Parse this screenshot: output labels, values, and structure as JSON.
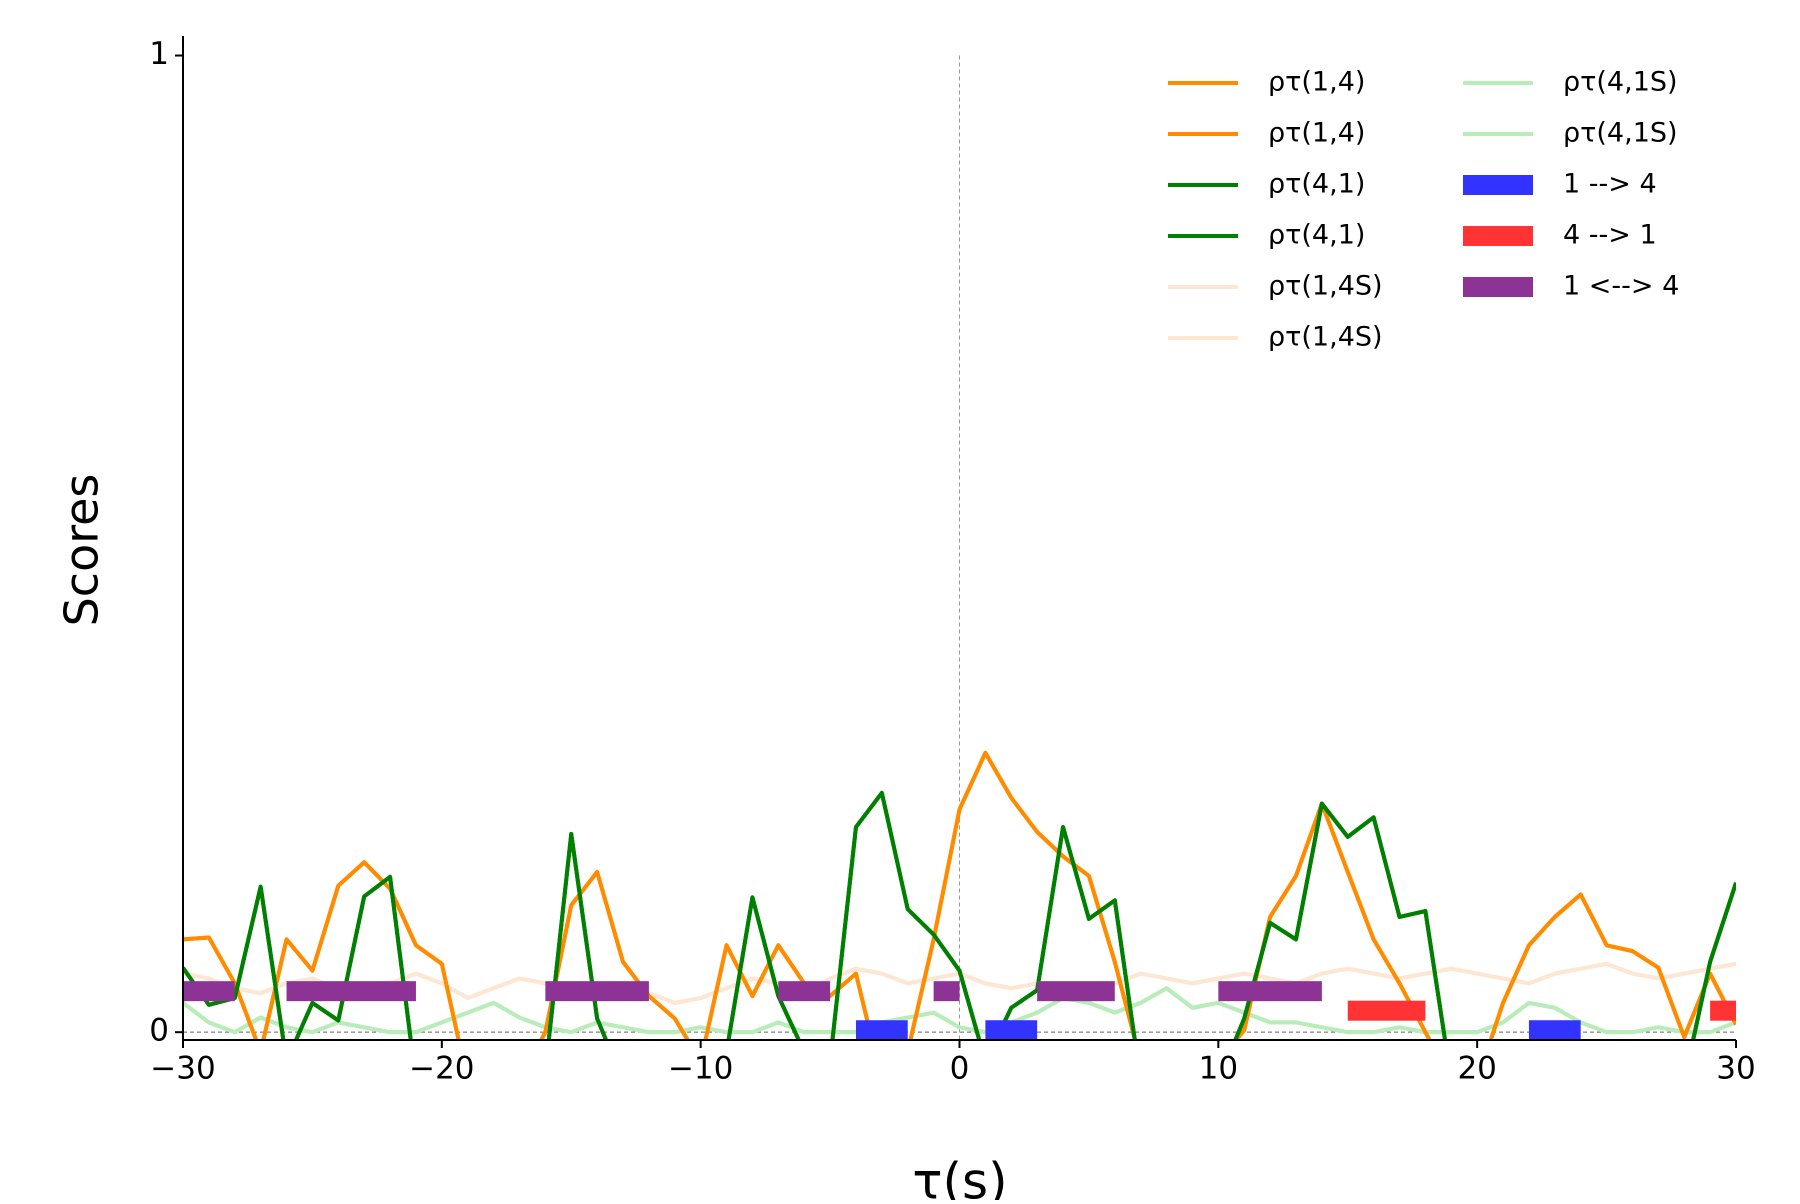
{
  "chart_data": {
    "type": "line",
    "xlabel": "τ(s)",
    "ylabel": "Scores",
    "xlim": [
      -30,
      30
    ],
    "ylim": [
      -0.008,
      1.02
    ],
    "xticks": [
      {
        "value": -30,
        "label": "−30"
      },
      {
        "value": -20,
        "label": "−20"
      },
      {
        "value": -10,
        "label": "−10"
      },
      0,
      10,
      20,
      30
    ],
    "yticks": [
      0,
      1
    ],
    "x": [
      -30,
      -29,
      -28,
      -27,
      -26,
      -25,
      -24,
      -23,
      -22,
      -21,
      -20,
      -19,
      -18,
      -17,
      -16,
      -15,
      -14,
      -13,
      -12,
      -11,
      -10,
      -9,
      -8,
      -7,
      -6,
      -5,
      -4,
      -3,
      -2,
      -1,
      0,
      1,
      2,
      3,
      4,
      5,
      6,
      7,
      8,
      9,
      10,
      11,
      12,
      13,
      14,
      15,
      16,
      17,
      18,
      19,
      20,
      21,
      22,
      23,
      24,
      25,
      26,
      27,
      28,
      29,
      30
    ],
    "series": [
      {
        "name": "ρτ(1,4)",
        "color": "#ff8c00",
        "width": 4,
        "values": [
          0.095,
          0.097,
          0.05,
          -0.02,
          0.095,
          0.063,
          0.15,
          0.174,
          0.147,
          0.089,
          0.07,
          -0.05,
          -0.05,
          -0.05,
          0.0,
          0.13,
          0.164,
          0.072,
          0.037,
          0.014,
          -0.03,
          0.089,
          0.037,
          0.089,
          0.05,
          0.037,
          0.06,
          -0.05,
          -0.02,
          0.095,
          0.228,
          0.286,
          0.24,
          0.205,
          0.18,
          0.16,
          0.072,
          -0.03,
          -0.05,
          -0.05,
          -0.03,
          0.002,
          0.118,
          0.16,
          0.234,
          0.164,
          0.095,
          0.05,
          0.0,
          -0.05,
          -0.05,
          0.03,
          0.089,
          0.118,
          0.141,
          0.089,
          0.083,
          0.066,
          -0.005,
          0.06,
          0.008
        ]
      },
      {
        "name": "ρτ(1,4)",
        "color": "#ff8c00",
        "width": 4,
        "values": [
          0.095,
          0.097,
          0.05,
          -0.02,
          0.095,
          0.063,
          0.15,
          0.174,
          0.147,
          0.089,
          0.07,
          -0.05,
          -0.05,
          -0.05,
          0.0,
          0.13,
          0.164,
          0.072,
          0.037,
          0.014,
          -0.03,
          0.089,
          0.037,
          0.089,
          0.05,
          0.037,
          0.06,
          -0.05,
          -0.02,
          0.095,
          0.228,
          0.286,
          0.24,
          0.205,
          0.18,
          0.16,
          0.072,
          -0.03,
          -0.05,
          -0.05,
          -0.03,
          0.002,
          0.118,
          0.16,
          0.234,
          0.164,
          0.095,
          0.05,
          0.0,
          -0.05,
          -0.05,
          0.03,
          0.089,
          0.118,
          0.141,
          0.089,
          0.083,
          0.066,
          -0.005,
          0.06,
          0.008
        ]
      },
      {
        "name": "ρτ(4,1)",
        "color": "#008000",
        "width": 4,
        "values": [
          0.066,
          0.028,
          0.035,
          0.149,
          -0.03,
          0.03,
          0.012,
          0.139,
          0.159,
          -0.05,
          -0.05,
          -0.05,
          -0.05,
          -0.05,
          -0.04,
          0.203,
          0.014,
          -0.05,
          -0.05,
          -0.05,
          -0.05,
          -0.02,
          0.138,
          0.037,
          -0.02,
          -0.03,
          0.21,
          0.245,
          0.126,
          0.1,
          0.063,
          -0.03,
          0.025,
          0.043,
          0.21,
          0.116,
          0.135,
          -0.05,
          -0.05,
          -0.05,
          -0.05,
          0.014,
          0.112,
          0.095,
          0.234,
          0.2,
          0.22,
          0.118,
          0.124,
          -0.05,
          -0.05,
          -0.05,
          -0.05,
          -0.05,
          -0.05,
          -0.05,
          -0.05,
          -0.05,
          -0.05,
          0.072,
          0.153
        ]
      },
      {
        "name": "ρτ(4,1)",
        "color": "#008000",
        "width": 4,
        "values": [
          0.066,
          0.028,
          0.035,
          0.149,
          -0.03,
          0.03,
          0.012,
          0.139,
          0.159,
          -0.05,
          -0.05,
          -0.05,
          -0.05,
          -0.05,
          -0.04,
          0.203,
          0.014,
          -0.05,
          -0.05,
          -0.05,
          -0.05,
          -0.02,
          0.138,
          0.037,
          -0.02,
          -0.03,
          0.21,
          0.245,
          0.126,
          0.1,
          0.063,
          -0.03,
          0.025,
          0.043,
          0.21,
          0.116,
          0.135,
          -0.05,
          -0.05,
          -0.05,
          -0.05,
          0.014,
          0.112,
          0.095,
          0.234,
          0.2,
          0.22,
          0.118,
          0.124,
          -0.05,
          -0.05,
          -0.05,
          -0.05,
          -0.05,
          -0.05,
          -0.05,
          -0.05,
          -0.05,
          -0.05,
          0.072,
          0.153
        ]
      },
      {
        "name": "ρτ(1,4S)",
        "color": "#fde6d2",
        "width": 4,
        "values": [
          0.06,
          0.055,
          0.045,
          0.04,
          0.05,
          0.055,
          0.045,
          0.04,
          0.05,
          0.06,
          0.05,
          0.035,
          0.045,
          0.055,
          0.05,
          0.04,
          0.045,
          0.05,
          0.04,
          0.03,
          0.035,
          0.045,
          0.055,
          0.05,
          0.04,
          0.055,
          0.065,
          0.06,
          0.05,
          0.055,
          0.06,
          0.05,
          0.045,
          0.05,
          0.04,
          0.045,
          0.05,
          0.06,
          0.055,
          0.05,
          0.055,
          0.06,
          0.055,
          0.05,
          0.06,
          0.065,
          0.06,
          0.055,
          0.06,
          0.065,
          0.06,
          0.055,
          0.05,
          0.06,
          0.065,
          0.07,
          0.06,
          0.055,
          0.06,
          0.065,
          0.07
        ]
      },
      {
        "name": "ρτ(1,4S)",
        "color": "#fde6d2",
        "width": 4,
        "values": [
          0.06,
          0.055,
          0.045,
          0.04,
          0.05,
          0.055,
          0.045,
          0.04,
          0.05,
          0.06,
          0.05,
          0.035,
          0.045,
          0.055,
          0.05,
          0.04,
          0.045,
          0.05,
          0.04,
          0.03,
          0.035,
          0.045,
          0.055,
          0.05,
          0.04,
          0.055,
          0.065,
          0.06,
          0.05,
          0.055,
          0.06,
          0.05,
          0.045,
          0.05,
          0.04,
          0.045,
          0.05,
          0.06,
          0.055,
          0.05,
          0.055,
          0.06,
          0.055,
          0.05,
          0.06,
          0.065,
          0.06,
          0.055,
          0.06,
          0.065,
          0.06,
          0.055,
          0.05,
          0.06,
          0.065,
          0.07,
          0.06,
          0.055,
          0.06,
          0.065,
          0.07
        ]
      },
      {
        "name": "ρτ(4,1S)",
        "color": "#b8ecb8",
        "width": 4,
        "values": [
          0.03,
          0.01,
          0.0,
          0.015,
          0.005,
          0.0,
          0.01,
          0.005,
          0.0,
          0.0,
          0.01,
          0.02,
          0.03,
          0.015,
          0.005,
          0.0,
          0.01,
          0.005,
          0.0,
          0.0,
          0.005,
          0.0,
          0.0,
          0.01,
          0.0,
          0.0,
          0.0,
          0.01,
          0.015,
          0.02,
          0.005,
          0.0,
          0.01,
          0.02,
          0.035,
          0.03,
          0.02,
          0.03,
          0.045,
          0.025,
          0.03,
          0.02,
          0.01,
          0.01,
          0.005,
          0.0,
          0.0,
          0.005,
          0.0,
          0.0,
          0.0,
          0.01,
          0.03,
          0.025,
          0.01,
          0.0,
          0.0,
          0.005,
          0.0,
          0.0,
          0.01
        ]
      },
      {
        "name": "ρτ(4,1S)",
        "color": "#b8ecb8",
        "width": 4,
        "values": [
          0.03,
          0.01,
          0.0,
          0.015,
          0.005,
          0.0,
          0.01,
          0.005,
          0.0,
          0.0,
          0.01,
          0.02,
          0.03,
          0.015,
          0.005,
          0.0,
          0.01,
          0.005,
          0.0,
          0.0,
          0.005,
          0.0,
          0.0,
          0.01,
          0.0,
          0.0,
          0.0,
          0.01,
          0.015,
          0.02,
          0.005,
          0.0,
          0.01,
          0.02,
          0.035,
          0.03,
          0.02,
          0.03,
          0.045,
          0.025,
          0.03,
          0.02,
          0.01,
          0.01,
          0.005,
          0.0,
          0.0,
          0.005,
          0.0,
          0.0,
          0.0,
          0.01,
          0.03,
          0.025,
          0.01,
          0.0,
          0.0,
          0.005,
          0.0,
          0.0,
          0.01
        ]
      }
    ],
    "bars": [
      {
        "name": "1 --> 4",
        "color": "#3333ff",
        "y": 0.002,
        "intervals": [
          [
            -4,
            -2
          ],
          [
            1,
            3
          ],
          [
            22,
            24
          ]
        ]
      },
      {
        "name": "4 --> 1",
        "color": "#ff3333",
        "y": 0.022,
        "intervals": [
          [
            15,
            18
          ],
          [
            29,
            30
          ]
        ]
      },
      {
        "name": "1 <--> 4",
        "color": "#8e3396",
        "y": 0.042,
        "intervals": [
          [
            -30,
            -28
          ],
          [
            -26,
            -21
          ],
          [
            -16,
            -12
          ],
          [
            -7,
            -5
          ],
          [
            -1,
            0
          ],
          [
            3,
            6
          ],
          [
            10,
            14
          ]
        ]
      }
    ]
  }
}
